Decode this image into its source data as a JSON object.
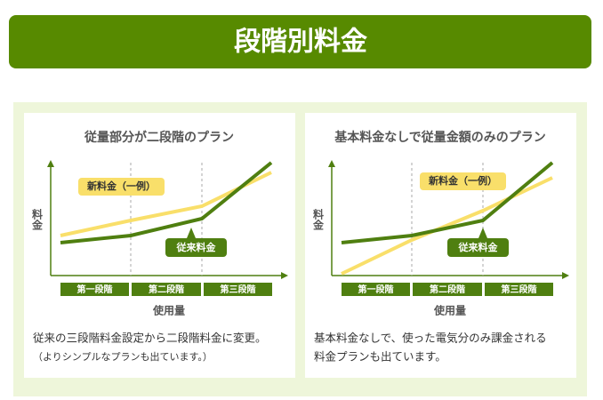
{
  "header": {
    "title": "段階別料金"
  },
  "panels": [
    {
      "title": "従量部分が二段階のプラン",
      "y_axis_label": "料金",
      "x_axis_label": "使用量",
      "stages": [
        "第一段階",
        "第二段階",
        "第三段階"
      ],
      "new_rate_label": "新料金（一例）",
      "old_rate_label": "従来料金",
      "description": [
        "従来の三段階料金設定から二段階料金に変更。",
        "（よりシンプルなプランも出ています。）"
      ]
    },
    {
      "title": "基本料金なしで従量金額のみのプラン",
      "y_axis_label": "料金",
      "x_axis_label": "使用量",
      "stages": [
        "第一段階",
        "第二段階",
        "第三段階"
      ],
      "new_rate_label": "新料金（一例）",
      "old_rate_label": "従来料金",
      "description": [
        "基本料金なしで、使った電気分のみ課金される",
        "料金プランも出ています。"
      ]
    }
  ]
}
